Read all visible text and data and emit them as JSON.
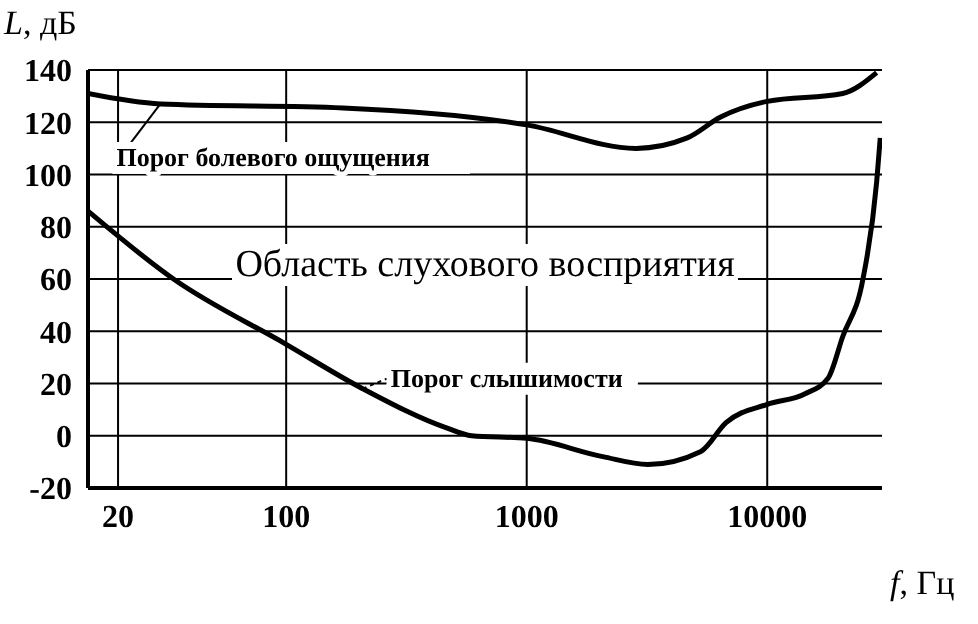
{
  "chart_data": {
    "type": "line",
    "xlabel": "f, Гц",
    "ylabel": "L, дБ",
    "log": "x",
    "xlim": [
      15,
      30000
    ],
    "xticks": [
      20,
      100,
      1000,
      10000
    ],
    "ylim": [
      -20,
      140
    ],
    "yticks": [
      -20,
      0,
      20,
      40,
      60,
      80,
      100,
      120,
      140
    ],
    "grid": true,
    "series": [
      {
        "color": "#000000",
        "x": [
          15,
          30,
          172,
          1000,
          2850,
          4650,
          6400,
          10000,
          20600,
          28500
        ],
        "values": [
          131,
          127,
          125.5,
          119,
          110,
          114,
          122,
          128,
          131,
          139
        ]
      },
      {
        "color": "#000000",
        "x": [
          15,
          34,
          100,
          208,
          464,
          590,
          1000,
          2070,
          3190,
          5300,
          6740,
          10000,
          14300,
          17900,
          20600,
          25000,
          28500,
          29500
        ],
        "values": [
          86,
          60,
          35,
          18,
          3,
          0,
          -1,
          -8,
          -11,
          -6,
          5,
          12,
          16,
          22,
          38,
          60,
          97,
          114
        ]
      }
    ],
    "annotations": [
      {
        "text": "Порог болевого ощущения",
        "x": 30,
        "y": 127
      },
      "Область слухового восприятия",
      {
        "text": "Порог слышимости",
        "x": 208,
        "y": 18
      }
    ]
  }
}
